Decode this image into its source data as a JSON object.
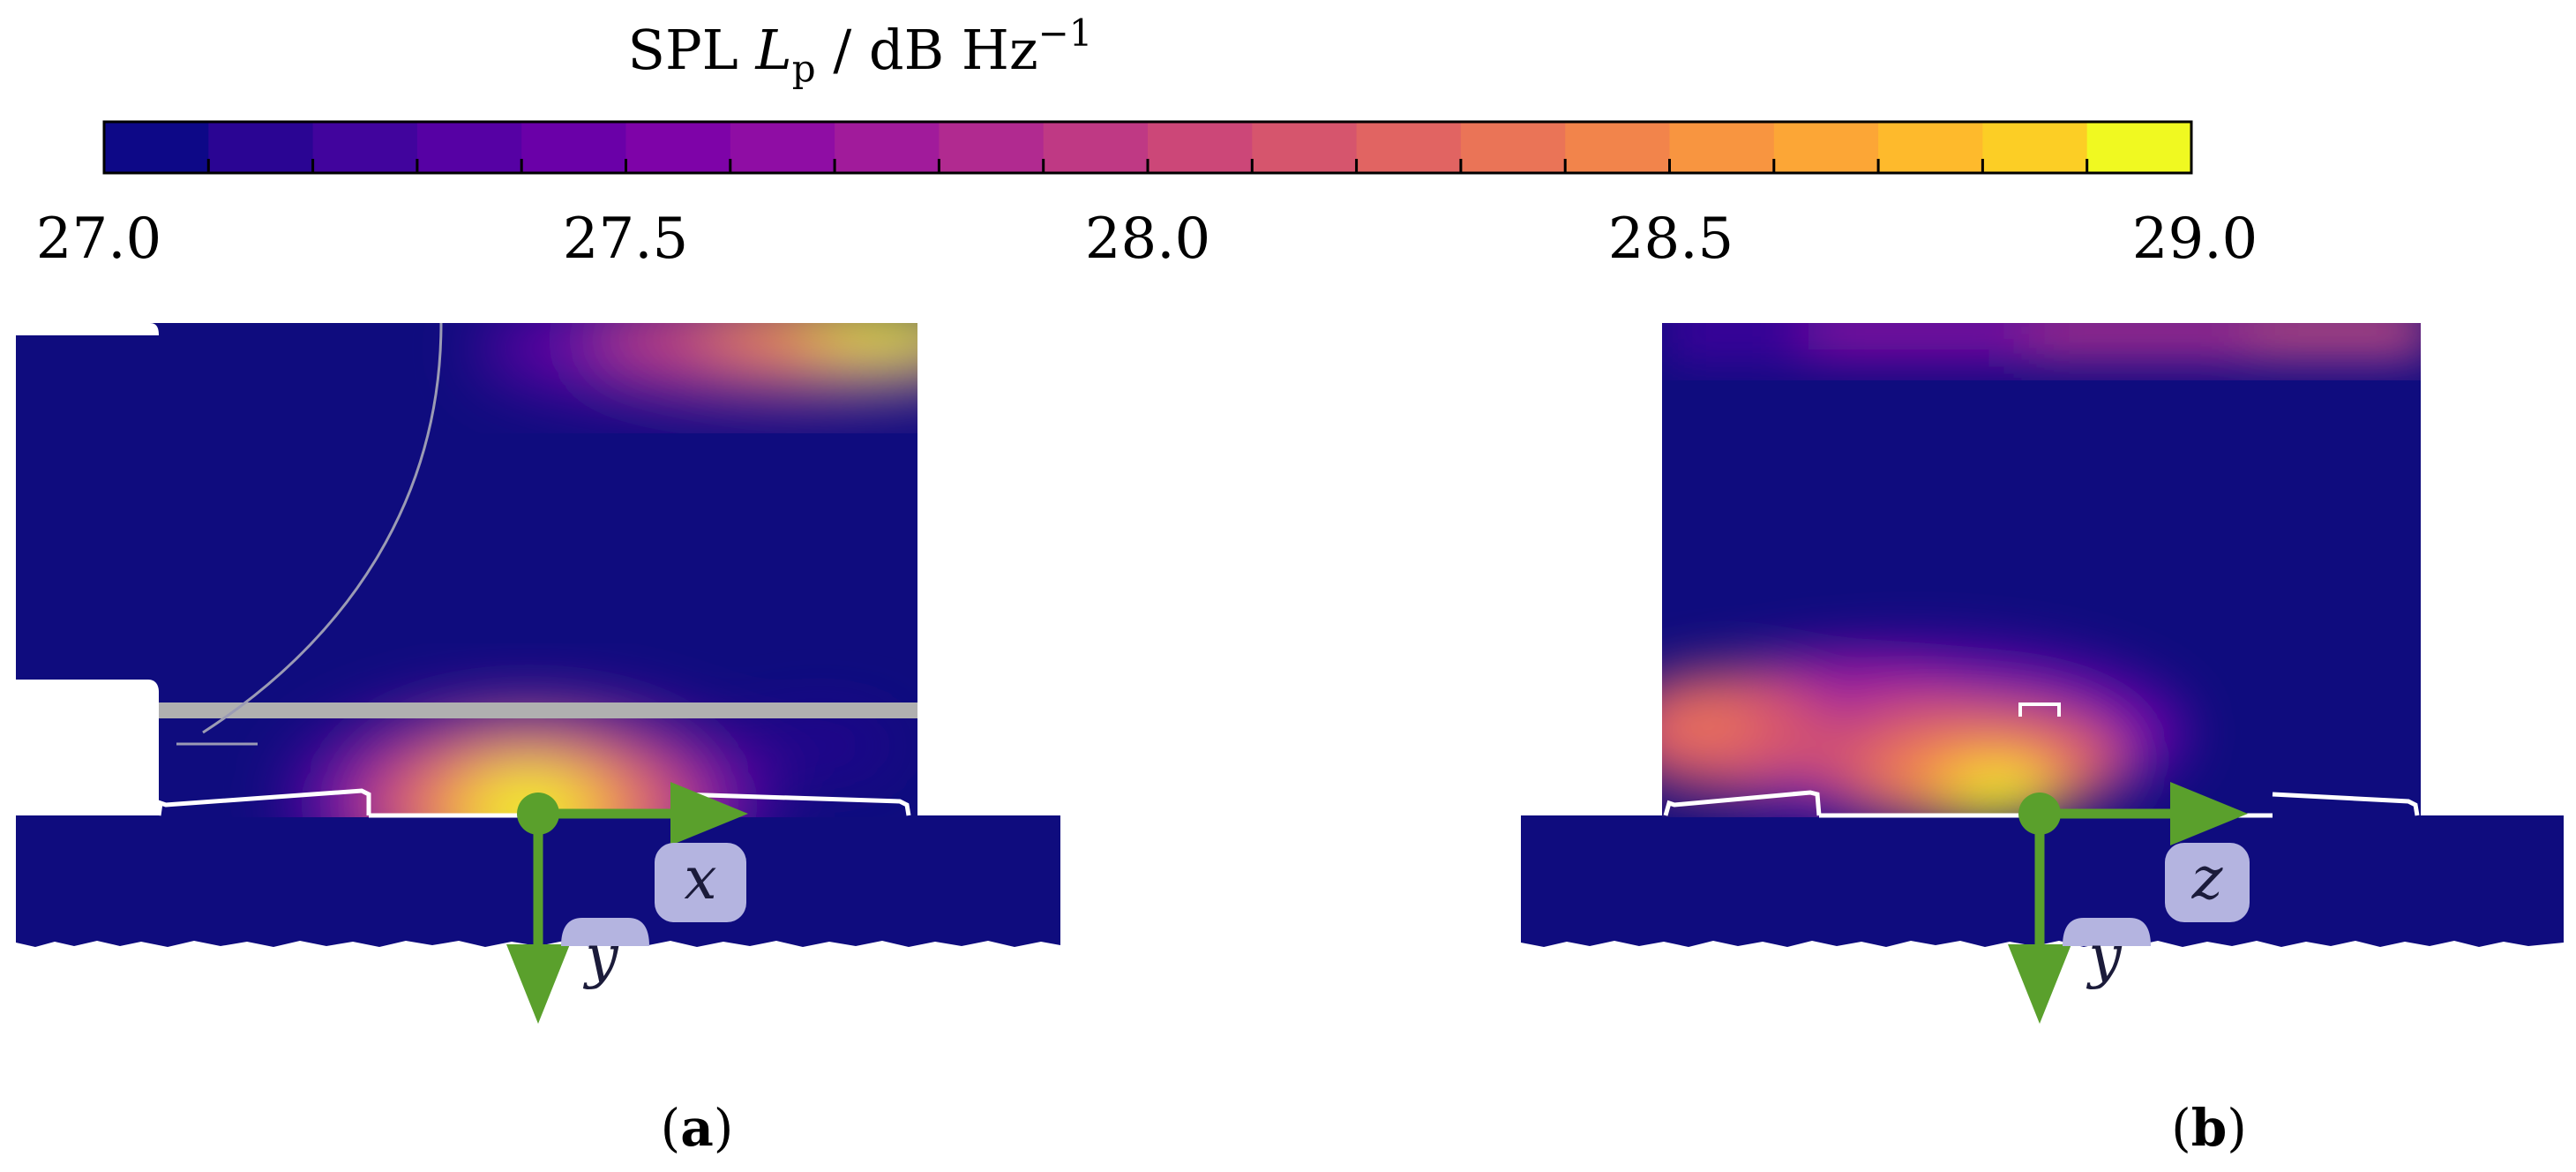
{
  "colorbar": {
    "title_prefix": "SPL ",
    "title_symbol": "L",
    "title_subscript": "p",
    "title_sep": " / dB Hz",
    "title_exponent": "−1",
    "ticks": [
      "27.0",
      "27.5",
      "28.0",
      "28.5",
      "29.0"
    ],
    "min": 27.0,
    "max": 29.0,
    "levels": 20,
    "colors": [
      "#0d0887",
      "#2a0593",
      "#41049d",
      "#5601a4",
      "#6a00a8",
      "#7e03a8",
      "#8f0da4",
      "#a11b9b",
      "#b12a90",
      "#bf3984",
      "#cc4778",
      "#d6556d",
      "#e16462",
      "#ea7457",
      "#f2844b",
      "#f89540",
      "#fca636",
      "#feba2c",
      "#fcce25",
      "#f0f921"
    ]
  },
  "panel_a": {
    "label": "a",
    "axis_x": "x",
    "axis_y": "y"
  },
  "panel_b": {
    "label": "b",
    "axis_x": "z",
    "axis_y": "y"
  },
  "colors": {
    "background_field": "#0f0c7e",
    "arrow": "#5aa02c",
    "label_box": "#b4b4e0",
    "rod": "#b0b0b0"
  }
}
